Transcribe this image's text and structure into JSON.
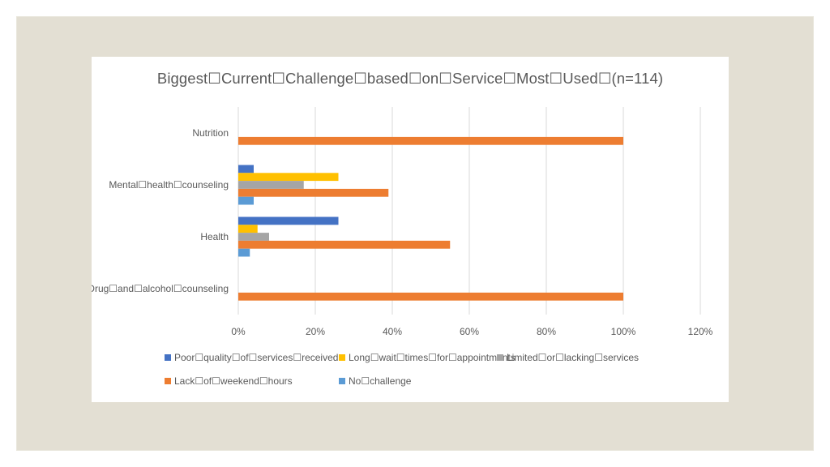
{
  "chart_data": {
    "type": "bar",
    "orientation": "horizontal",
    "title": "Biggest☐Current☐Challenge☐based☐on☐Service☐Most☐Used☐(n=114)",
    "categories": [
      "Nutrition",
      "Mental☐health☐counseling",
      "Health",
      "Drug☐and☐alcohol☐counseling"
    ],
    "series": [
      {
        "name": "Poor☐quality☐of☐services☐received",
        "color": "#4472C4",
        "values": [
          0,
          4,
          26,
          0
        ]
      },
      {
        "name": "Long☐wait☐times☐for☐appointments",
        "color": "#FFC000",
        "values": [
          0,
          26,
          5,
          0
        ]
      },
      {
        "name": "Limited☐or☐lacking☐services",
        "color": "#A5A5A5",
        "values": [
          0,
          17,
          8,
          0
        ]
      },
      {
        "name": "Lack☐of☐weekend☐hours",
        "color": "#ED7D31",
        "values": [
          100,
          39,
          55,
          100
        ]
      },
      {
        "name": "No☐challenge",
        "color": "#5B9BD5",
        "values": [
          0,
          4,
          3,
          0
        ]
      }
    ],
    "xlim": [
      0,
      120
    ],
    "xticks": [
      "0%",
      "20%",
      "40%",
      "60%",
      "80%",
      "100%",
      "120%"
    ],
    "grid": true,
    "legend_position": "bottom"
  }
}
